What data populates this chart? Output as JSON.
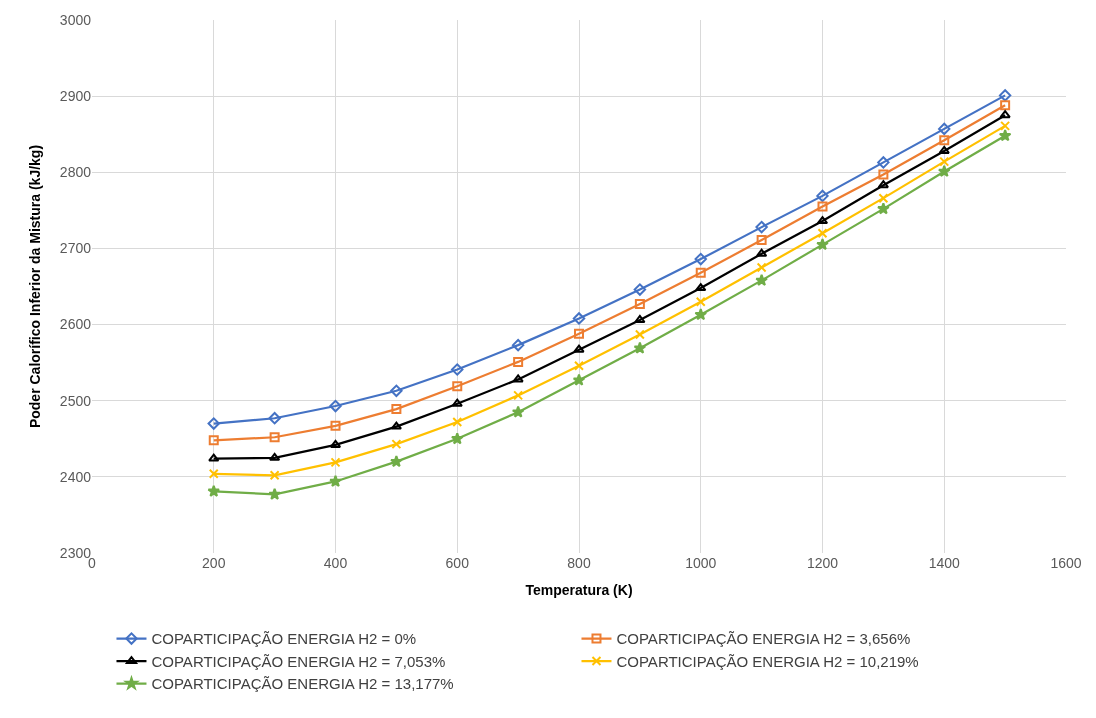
{
  "chart_data": {
    "type": "line",
    "xlabel": "Temperatura (K)",
    "ylabel": "Poder Calorífico Inferior da Mistura (kJ/kg)",
    "x": [
      200,
      300,
      400,
      500,
      600,
      700,
      800,
      900,
      1000,
      1100,
      1200,
      1300,
      1400,
      1500
    ],
    "series": [
      {
        "name": "COPARTICIPAÇÃO ENERGIA H2 = 0%",
        "color": "#4472c4",
        "marker": "diamond",
        "values": [
          2470,
          2477,
          2493,
          2513,
          2541,
          2573,
          2608,
          2646,
          2686,
          2728,
          2769,
          2813,
          2857,
          2901
        ]
      },
      {
        "name": "COPARTICIPAÇÃO ENERGIA H2 = 3,656%",
        "color": "#ed7d31",
        "marker": "square",
        "values": [
          2448,
          2452,
          2467,
          2489,
          2519,
          2551,
          2588,
          2627,
          2668,
          2711,
          2755,
          2797,
          2842,
          2888
        ]
      },
      {
        "name": "COPARTICIPAÇÃO ENERGIA H2 = 7,053%",
        "color": "#000000",
        "marker": "triangle",
        "values": [
          2424,
          2425,
          2442,
          2466,
          2496,
          2528,
          2567,
          2606,
          2648,
          2693,
          2736,
          2783,
          2828,
          2875
        ]
      },
      {
        "name": "COPARTICIPAÇÃO ENERGIA H2 = 10,219%",
        "color": "#ffc000",
        "marker": "cross",
        "values": [
          2404,
          2402,
          2419,
          2443,
          2472,
          2507,
          2546,
          2587,
          2630,
          2675,
          2720,
          2766,
          2814,
          2861
        ]
      },
      {
        "name": "COPARTICIPAÇÃO ENERGIA H2 = 13,177%",
        "color": "#70ad47",
        "marker": "star",
        "values": [
          2381,
          2377,
          2394,
          2420,
          2450,
          2485,
          2527,
          2569,
          2613,
          2658,
          2705,
          2752,
          2801,
          2848
        ]
      }
    ],
    "xlim": [
      0,
      1600
    ],
    "xticks": [
      0,
      200,
      400,
      600,
      800,
      1000,
      1200,
      1400,
      1600
    ],
    "ylim": [
      2300,
      3000
    ],
    "yticks": [
      2300,
      2400,
      2500,
      2600,
      2700,
      2800,
      2900,
      3000
    ],
    "grid": true,
    "legend": "bottom",
    "line_style": "solid"
  }
}
